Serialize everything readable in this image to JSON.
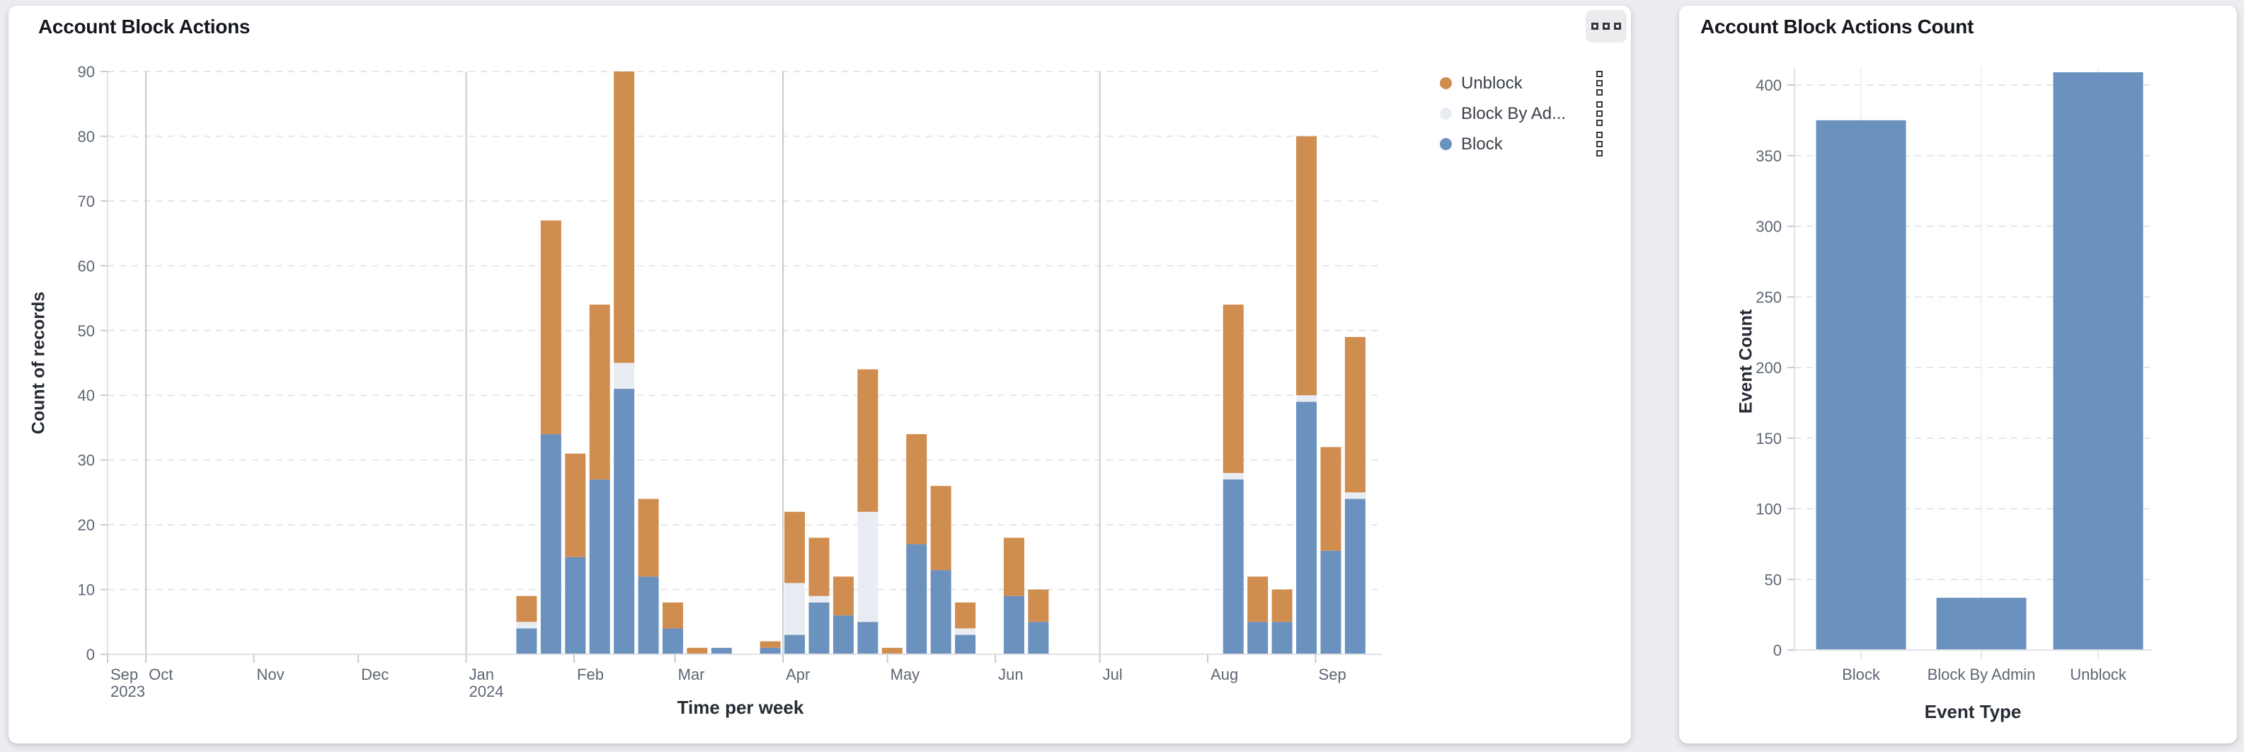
{
  "page": {
    "background": "#ecedf0"
  },
  "colors": {
    "block": "#6b91bf",
    "block_by_admin": "#e9edf3",
    "unblock": "#d08d50",
    "grid_dash": "#e4e6ea",
    "quarter_line": "#c7cad0",
    "axis_line": "#dfe2e6",
    "tick_text": "#5d6673"
  },
  "left_card": {
    "title": "Account Block Actions",
    "menu_icon": "squares-ellipsis-icon",
    "legend": [
      {
        "label": "Unblock",
        "color": "#d08d50"
      },
      {
        "label": "Block By Ad...",
        "color": "#e9edf3"
      },
      {
        "label": "Block",
        "color": "#6b91bf"
      }
    ]
  },
  "right_card": {
    "title": "Account Block Actions Count"
  },
  "chart_data": [
    {
      "type": "bar",
      "stacked": true,
      "title": "Account Block Actions",
      "xlabel": "Time per week",
      "ylabel": "Count of records",
      "ylim": [
        0,
        90
      ],
      "y_ticks": [
        0,
        10,
        20,
        30,
        40,
        50,
        60,
        70,
        80,
        90
      ],
      "grid": true,
      "legend_position": "top-right",
      "x_domain": [
        "2023-09-20",
        "2024-09-20"
      ],
      "x_ticks": [
        {
          "date": "2023-09-20",
          "label": "Sep",
          "sublabel": "2023"
        },
        {
          "date": "2023-10-01",
          "label": "Oct",
          "quarter": true
        },
        {
          "date": "2023-11-01",
          "label": "Nov"
        },
        {
          "date": "2023-12-01",
          "label": "Dec"
        },
        {
          "date": "2024-01-01",
          "label": "Jan",
          "sublabel": "2024",
          "quarter": true
        },
        {
          "date": "2024-02-01",
          "label": "Feb"
        },
        {
          "date": "2024-03-01",
          "label": "Mar"
        },
        {
          "date": "2024-04-01",
          "label": "Apr",
          "quarter": true
        },
        {
          "date": "2024-05-01",
          "label": "May"
        },
        {
          "date": "2024-06-01",
          "label": "Jun"
        },
        {
          "date": "2024-07-01",
          "label": "Jul",
          "quarter": true
        },
        {
          "date": "2024-08-01",
          "label": "Aug"
        },
        {
          "date": "2024-09-01",
          "label": "Sep"
        }
      ],
      "series": [
        {
          "key": "block",
          "name": "Block",
          "color": "#6b91bf"
        },
        {
          "key": "admin",
          "name": "Block By Admin",
          "color": "#e9edf3"
        },
        {
          "key": "unblock",
          "name": "Unblock",
          "color": "#d08d50"
        }
      ],
      "stack_order_bottom_to_top": [
        "block",
        "admin",
        "unblock"
      ],
      "weeks": [
        {
          "week_start": "2024-01-15",
          "block": 4,
          "admin": 1,
          "unblock": 4
        },
        {
          "week_start": "2024-01-22",
          "block": 34,
          "admin": 0,
          "unblock": 33
        },
        {
          "week_start": "2024-01-29",
          "block": 15,
          "admin": 0,
          "unblock": 16
        },
        {
          "week_start": "2024-02-05",
          "block": 27,
          "admin": 0,
          "unblock": 27
        },
        {
          "week_start": "2024-02-12",
          "block": 41,
          "admin": 4,
          "unblock": 45
        },
        {
          "week_start": "2024-02-19",
          "block": 12,
          "admin": 0,
          "unblock": 12
        },
        {
          "week_start": "2024-02-26",
          "block": 4,
          "admin": 0,
          "unblock": 4
        },
        {
          "week_start": "2024-03-04",
          "block": 0,
          "admin": 0,
          "unblock": 1
        },
        {
          "week_start": "2024-03-11",
          "block": 1,
          "admin": 0,
          "unblock": 0
        },
        {
          "week_start": "2024-03-25",
          "block": 1,
          "admin": 0,
          "unblock": 1
        },
        {
          "week_start": "2024-04-01",
          "block": 3,
          "admin": 8,
          "unblock": 11
        },
        {
          "week_start": "2024-04-08",
          "block": 8,
          "admin": 1,
          "unblock": 9
        },
        {
          "week_start": "2024-04-15",
          "block": 6,
          "admin": 0,
          "unblock": 6
        },
        {
          "week_start": "2024-04-22",
          "block": 5,
          "admin": 17,
          "unblock": 22
        },
        {
          "week_start": "2024-04-29",
          "block": 0,
          "admin": 0,
          "unblock": 1
        },
        {
          "week_start": "2024-05-06",
          "block": 17,
          "admin": 0,
          "unblock": 17
        },
        {
          "week_start": "2024-05-13",
          "block": 13,
          "admin": 0,
          "unblock": 13
        },
        {
          "week_start": "2024-05-20",
          "block": 3,
          "admin": 1,
          "unblock": 4
        },
        {
          "week_start": "2024-06-03",
          "block": 9,
          "admin": 0,
          "unblock": 9
        },
        {
          "week_start": "2024-06-10",
          "block": 5,
          "admin": 0,
          "unblock": 5
        },
        {
          "week_start": "2024-08-05",
          "block": 27,
          "admin": 1,
          "unblock": 26
        },
        {
          "week_start": "2024-08-12",
          "block": 5,
          "admin": 0,
          "unblock": 7
        },
        {
          "week_start": "2024-08-19",
          "block": 5,
          "admin": 0,
          "unblock": 5
        },
        {
          "week_start": "2024-08-26",
          "block": 39,
          "admin": 1,
          "unblock": 40
        },
        {
          "week_start": "2024-09-02",
          "block": 16,
          "admin": 0,
          "unblock": 16
        },
        {
          "week_start": "2024-09-09",
          "block": 24,
          "admin": 1,
          "unblock": 24
        }
      ]
    },
    {
      "type": "bar",
      "title": "Account Block Actions Count",
      "xlabel": "Event Type",
      "ylabel": "Event Count",
      "categories": [
        "Block",
        "Block By Admin",
        "Unblock"
      ],
      "values": [
        375,
        37,
        409
      ],
      "ylim": [
        0,
        400
      ],
      "y_ticks": [
        0,
        50,
        100,
        150,
        200,
        250,
        300,
        350,
        400
      ],
      "grid": true,
      "bar_color": "#6b91bf"
    }
  ]
}
